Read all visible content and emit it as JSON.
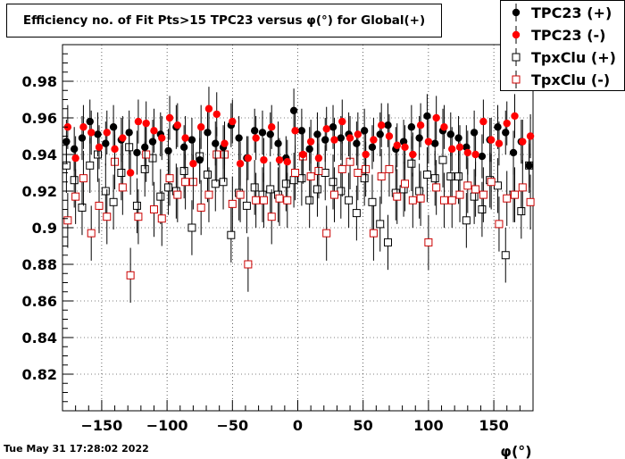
{
  "window": {
    "timestamp": "Tue May 31 17:28:02 2022"
  },
  "chart_data": {
    "type": "scatter",
    "title": "Efficiency no. of Fit Pts>15 TPC23 versus φ(°) for Global(+)",
    "xlabel": "φ(°)",
    "ylabel": "",
    "xlim": [
      -180,
      180
    ],
    "ylim": [
      0.8,
      1.0
    ],
    "xticks": [
      -150,
      -100,
      -50,
      0,
      50,
      100,
      150
    ],
    "yticks": [
      0.82,
      0.84,
      0.86,
      0.88,
      0.9,
      0.92,
      0.94,
      0.96,
      0.98
    ],
    "ytick_labels": [
      "0.82",
      "0.84",
      "0.86",
      "0.88",
      "0.9",
      "0.92",
      "0.94",
      "0.96",
      "0.98"
    ],
    "grid": true,
    "legend_position": "top-right",
    "series": [
      {
        "name": "TPC23 (+)",
        "color": "#000000",
        "marker": "filled-circle",
        "x": [
          -177,
          -171,
          -165,
          -159,
          -153,
          -147,
          -141,
          -135,
          -129,
          -123,
          -117,
          -111,
          -105,
          -99,
          -93,
          -87,
          -81,
          -75,
          -69,
          -63,
          -57,
          -51,
          -45,
          -39,
          -33,
          -27,
          -21,
          -15,
          -9,
          -3,
          3,
          9,
          15,
          21,
          27,
          33,
          39,
          45,
          51,
          57,
          63,
          69,
          75,
          81,
          87,
          93,
          99,
          105,
          111,
          117,
          123,
          129,
          135,
          141,
          147,
          153,
          159,
          165,
          171,
          177
        ],
        "y": [
          0.947,
          0.943,
          0.949,
          0.958,
          0.951,
          0.946,
          0.955,
          0.948,
          0.952,
          0.941,
          0.944,
          0.947,
          0.951,
          0.942,
          0.955,
          0.944,
          0.948,
          0.937,
          0.952,
          0.946,
          0.944,
          0.956,
          0.949,
          0.938,
          0.953,
          0.952,
          0.951,
          0.946,
          0.938,
          0.964,
          0.953,
          0.943,
          0.951,
          0.948,
          0.955,
          0.949,
          0.951,
          0.946,
          0.953,
          0.944,
          0.951,
          0.956,
          0.943,
          0.947,
          0.955,
          0.949,
          0.961,
          0.946,
          0.953,
          0.951,
          0.949,
          0.944,
          0.952,
          0.939,
          0.948,
          0.955,
          0.952,
          0.941,
          0.947,
          0.934
        ],
        "error": 0.012
      },
      {
        "name": "TPC23 (-)",
        "color": "#ff0000",
        "marker": "filled-circle",
        "x": [
          -176,
          -170,
          -164,
          -158,
          -152,
          -146,
          -140,
          -134,
          -128,
          -122,
          -116,
          -110,
          -104,
          -98,
          -92,
          -86,
          -80,
          -74,
          -68,
          -62,
          -56,
          -50,
          -44,
          -38,
          -32,
          -26,
          -20,
          -14,
          -8,
          -2,
          4,
          10,
          16,
          22,
          28,
          34,
          40,
          46,
          52,
          58,
          64,
          70,
          76,
          82,
          88,
          94,
          100,
          106,
          112,
          118,
          124,
          130,
          136,
          142,
          148,
          154,
          160,
          166,
          172,
          178
        ],
        "y": [
          0.955,
          0.938,
          0.955,
          0.952,
          0.944,
          0.952,
          0.943,
          0.949,
          0.93,
          0.958,
          0.957,
          0.953,
          0.949,
          0.96,
          0.956,
          0.949,
          0.935,
          0.955,
          0.965,
          0.962,
          0.946,
          0.958,
          0.935,
          0.938,
          0.949,
          0.937,
          0.955,
          0.937,
          0.936,
          0.953,
          0.94,
          0.947,
          0.938,
          0.954,
          0.948,
          0.958,
          0.949,
          0.951,
          0.94,
          0.948,
          0.956,
          0.95,
          0.945,
          0.944,
          0.94,
          0.956,
          0.947,
          0.96,
          0.955,
          0.943,
          0.944,
          0.941,
          0.94,
          0.958,
          0.948,
          0.946,
          0.957,
          0.961,
          0.947,
          0.95
        ],
        "error": 0.012
      },
      {
        "name": "TpxClu (+)",
        "color": "#000000",
        "marker": "open-square",
        "x": [
          -177,
          -171,
          -165,
          -159,
          -153,
          -147,
          -141,
          -135,
          -129,
          -123,
          -117,
          -111,
          -105,
          -99,
          -93,
          -87,
          -81,
          -75,
          -69,
          -63,
          -57,
          -51,
          -45,
          -39,
          -33,
          -27,
          -21,
          -15,
          -9,
          -3,
          3,
          9,
          15,
          21,
          27,
          33,
          39,
          45,
          51,
          57,
          63,
          69,
          75,
          81,
          87,
          93,
          99,
          105,
          111,
          117,
          123,
          129,
          135,
          141,
          147,
          153,
          159,
          165,
          171,
          177
        ],
        "y": [
          0.934,
          0.926,
          0.911,
          0.934,
          0.94,
          0.92,
          0.914,
          0.93,
          0.944,
          0.912,
          0.932,
          0.938,
          0.917,
          0.922,
          0.92,
          0.931,
          0.9,
          0.939,
          0.929,
          0.924,
          0.925,
          0.896,
          0.919,
          0.912,
          0.922,
          0.918,
          0.921,
          0.918,
          0.924,
          0.926,
          0.927,
          0.915,
          0.921,
          0.93,
          0.925,
          0.92,
          0.915,
          0.908,
          0.927,
          0.914,
          0.902,
          0.892,
          0.919,
          0.921,
          0.935,
          0.92,
          0.929,
          0.927,
          0.937,
          0.928,
          0.928,
          0.904,
          0.917,
          0.91,
          0.926,
          0.923,
          0.885,
          0.918,
          0.909,
          0.934
        ],
        "error": 0.015
      },
      {
        "name": "TpxClu (-)",
        "color": "#cc0000",
        "marker": "open-square",
        "x": [
          -176,
          -170,
          -164,
          -158,
          -152,
          -146,
          -140,
          -134,
          -128,
          -122,
          -116,
          -110,
          -104,
          -98,
          -92,
          -86,
          -80,
          -74,
          -68,
          -62,
          -56,
          -50,
          -44,
          -38,
          -32,
          -26,
          -20,
          -14,
          -8,
          -2,
          4,
          10,
          16,
          22,
          28,
          34,
          40,
          46,
          52,
          58,
          64,
          70,
          76,
          82,
          88,
          94,
          100,
          106,
          112,
          118,
          124,
          130,
          136,
          142,
          148,
          154,
          160,
          166,
          172,
          178
        ],
        "y": [
          0.904,
          0.917,
          0.927,
          0.897,
          0.912,
          0.906,
          0.936,
          0.922,
          0.874,
          0.906,
          0.94,
          0.91,
          0.905,
          0.927,
          0.918,
          0.925,
          0.925,
          0.911,
          0.918,
          0.94,
          0.94,
          0.913,
          0.918,
          0.88,
          0.915,
          0.915,
          0.906,
          0.916,
          0.915,
          0.93,
          0.939,
          0.928,
          0.931,
          0.897,
          0.918,
          0.932,
          0.936,
          0.93,
          0.932,
          0.897,
          0.928,
          0.932,
          0.917,
          0.924,
          0.915,
          0.916,
          0.892,
          0.922,
          0.915,
          0.915,
          0.918,
          0.923,
          0.921,
          0.918,
          0.925,
          0.902,
          0.916,
          0.918,
          0.922,
          0.914
        ],
        "error": 0.015
      }
    ]
  }
}
